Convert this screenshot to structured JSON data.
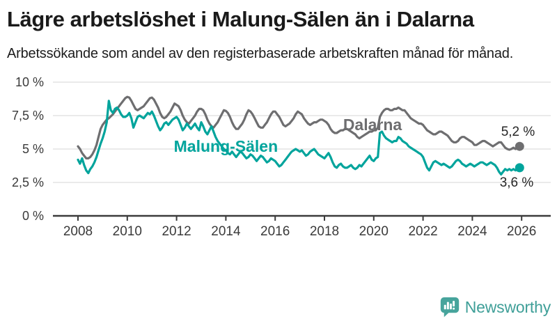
{
  "title": "Lägre arbetslöshet i Malung-Sälen än i Dalarna",
  "subtitle": "Arbetssökande som andel av den registerbaserade arbetskraften månad för månad.",
  "logo": {
    "name": "Newsworthy",
    "color": "#3f9f98"
  },
  "colors": {
    "teal_line": "#00a49c",
    "gray_line": "#6e6e70",
    "gridline": "#e3e3e3",
    "axis": "#3b3b3b",
    "text": "#1a1a1a"
  },
  "chart_data": {
    "type": "line",
    "title": "Lägre arbetslöshet i Malung-Sälen än i Dalarna",
    "subtitle": "Arbetssökande som andel av den registerbaserade arbetskraften månad för månad.",
    "frequency": "monthly",
    "x_start_year": 2008,
    "ylim": [
      0,
      10
    ],
    "grid": "horizontal",
    "legend_position": "inline-labels",
    "y_ticks": [
      {
        "label": "10 %",
        "value": 10
      },
      {
        "label": "7,5 %",
        "value": 7.5
      },
      {
        "label": "5 %",
        "value": 5
      },
      {
        "label": "2,5 %",
        "value": 2.5
      },
      {
        "label": "0 %",
        "value": 0
      }
    ],
    "x_ticks": [
      {
        "label": "2008",
        "value": 2008
      },
      {
        "label": "2010",
        "value": 2010
      },
      {
        "label": "2012",
        "value": 2012
      },
      {
        "label": "2014",
        "value": 2014
      },
      {
        "label": "2016",
        "value": 2016
      },
      {
        "label": "2018",
        "value": 2018
      },
      {
        "label": "2020",
        "value": 2020
      },
      {
        "label": "2022",
        "value": 2022
      },
      {
        "label": "2024",
        "value": 2024
      },
      {
        "label": "2026",
        "value": 2026
      }
    ],
    "series": [
      {
        "name": "Dalarna",
        "color": "#6e6e70",
        "end_label": "5,2 %",
        "end_value": 5.2,
        "end_label_dx": 22,
        "end_label_dy": -15,
        "values": [
          5.2,
          5.0,
          4.7,
          4.5,
          4.3,
          4.3,
          4.4,
          4.6,
          4.9,
          5.3,
          5.9,
          6.5,
          6.8,
          7.0,
          7.2,
          7.3,
          7.45,
          7.6,
          7.8,
          8.0,
          8.2,
          8.4,
          8.6,
          8.8,
          8.9,
          8.85,
          8.6,
          8.3,
          8.0,
          7.9,
          8.0,
          8.1,
          8.2,
          8.4,
          8.6,
          8.8,
          8.85,
          8.7,
          8.4,
          8.1,
          7.7,
          7.4,
          7.3,
          7.4,
          7.6,
          7.8,
          8.1,
          8.4,
          8.3,
          8.2,
          7.9,
          7.5,
          7.2,
          7.0,
          6.9,
          7.1,
          7.3,
          7.5,
          7.8,
          8.0,
          8.0,
          7.9,
          7.6,
          7.2,
          6.9,
          6.7,
          6.6,
          6.8,
          7.0,
          7.3,
          7.6,
          7.9,
          7.85,
          7.7,
          7.4,
          7.0,
          6.7,
          6.5,
          6.5,
          6.7,
          6.9,
          7.2,
          7.6,
          7.9,
          7.8,
          7.6,
          7.3,
          7.0,
          6.7,
          6.6,
          6.6,
          6.8,
          7.0,
          7.3,
          7.6,
          7.8,
          7.8,
          7.6,
          7.4,
          7.1,
          6.8,
          6.7,
          6.8,
          6.9,
          7.1,
          7.3,
          7.6,
          7.8,
          7.7,
          7.6,
          7.3,
          7.1,
          6.9,
          6.8,
          6.9,
          7.0,
          7.0,
          7.1,
          7.2,
          7.2,
          7.1,
          7.0,
          6.8,
          6.5,
          6.3,
          6.2,
          6.2,
          6.3,
          6.4,
          6.4,
          6.5,
          6.5,
          6.4,
          6.3,
          6.2,
          6.1,
          5.9,
          5.8,
          5.9,
          6.0,
          6.1,
          6.2,
          6.3,
          6.3,
          6.4,
          6.4,
          6.6,
          7.4,
          7.7,
          7.9,
          8.0,
          8.0,
          7.9,
          7.9,
          8.0,
          8.0,
          8.1,
          8.0,
          7.9,
          7.9,
          7.7,
          7.5,
          7.3,
          7.2,
          7.1,
          7.0,
          6.9,
          6.9,
          6.8,
          6.6,
          6.4,
          6.3,
          6.2,
          6.1,
          6.1,
          6.2,
          6.3,
          6.3,
          6.2,
          6.1,
          6.0,
          5.8,
          5.6,
          5.5,
          5.5,
          5.6,
          5.8,
          5.9,
          5.9,
          5.8,
          5.7,
          5.6,
          5.5,
          5.3,
          5.3,
          5.4,
          5.5,
          5.6,
          5.6,
          5.5,
          5.4,
          5.3,
          5.2,
          5.3,
          5.4,
          5.5,
          5.5,
          5.3,
          5.1,
          5.0,
          4.95,
          5.0,
          5.1,
          5.0,
          5.1,
          5.2
        ]
      },
      {
        "name": "Malung-Sälen",
        "color": "#00a49c",
        "end_label": "3,6 %",
        "end_value": 3.6,
        "end_label_dx": 20,
        "end_label_dy": 27,
        "values": [
          4.2,
          3.9,
          4.3,
          3.8,
          3.4,
          3.2,
          3.5,
          3.7,
          4.0,
          4.4,
          4.9,
          5.4,
          5.8,
          6.3,
          7.0,
          8.6,
          7.9,
          7.7,
          8.0,
          8.1,
          7.9,
          7.6,
          7.4,
          7.4,
          7.5,
          7.7,
          7.3,
          6.6,
          7.0,
          7.4,
          7.5,
          7.4,
          7.3,
          7.5,
          7.7,
          7.6,
          7.8,
          7.5,
          7.1,
          6.7,
          6.4,
          6.6,
          6.9,
          7.0,
          6.8,
          7.0,
          7.2,
          7.3,
          7.4,
          7.2,
          6.8,
          6.4,
          6.6,
          6.9,
          6.7,
          6.5,
          6.7,
          6.9,
          6.6,
          6.4,
          7.0,
          6.7,
          6.3,
          6.1,
          6.4,
          6.7,
          6.3,
          5.9,
          5.6,
          5.4,
          5.2,
          5.0,
          4.9,
          4.7,
          4.6,
          4.8,
          4.6,
          4.4,
          4.6,
          4.8,
          4.7,
          4.5,
          4.3,
          4.4,
          4.6,
          4.5,
          4.3,
          4.1,
          4.3,
          4.5,
          4.4,
          4.2,
          4.0,
          4.1,
          4.3,
          4.2,
          4.1,
          3.9,
          3.7,
          3.8,
          4.0,
          4.2,
          4.4,
          4.6,
          4.8,
          4.9,
          5.0,
          4.9,
          4.8,
          4.9,
          4.7,
          4.5,
          4.6,
          4.8,
          4.9,
          5.0,
          4.8,
          4.6,
          4.5,
          4.4,
          4.3,
          4.5,
          4.7,
          4.4,
          4.0,
          3.7,
          3.6,
          3.8,
          3.9,
          3.7,
          3.6,
          3.6,
          3.7,
          3.8,
          3.6,
          3.5,
          3.6,
          3.8,
          3.7,
          3.9,
          4.1,
          4.3,
          4.5,
          4.2,
          4.1,
          4.3,
          4.4,
          6.2,
          6.3,
          6.0,
          5.8,
          5.7,
          5.6,
          5.5,
          5.6,
          5.6,
          5.9,
          5.8,
          5.6,
          5.5,
          5.4,
          5.2,
          5.1,
          5.0,
          4.9,
          4.8,
          4.7,
          4.6,
          4.4,
          4.0,
          3.6,
          3.4,
          3.7,
          4.0,
          4.1,
          4.0,
          3.9,
          3.8,
          3.9,
          3.8,
          3.7,
          3.6,
          3.7,
          3.9,
          4.1,
          4.2,
          4.1,
          3.9,
          3.8,
          3.7,
          3.8,
          3.9,
          3.8,
          3.7,
          3.8,
          3.9,
          4.0,
          4.0,
          3.9,
          3.8,
          3.9,
          4.0,
          3.9,
          3.8,
          3.6,
          3.3,
          3.1,
          3.3,
          3.5,
          3.4,
          3.5,
          3.4,
          3.5,
          3.4,
          3.5,
          3.6
        ]
      }
    ],
    "series_labels": [
      {
        "text": "Dalarna",
        "color": "#6e6e70",
        "x": 2019.95,
        "y": 6.82
      },
      {
        "text": "Malung-Sälen",
        "color": "#00a49c",
        "x": 2014.0,
        "y": 5.2
      }
    ]
  }
}
